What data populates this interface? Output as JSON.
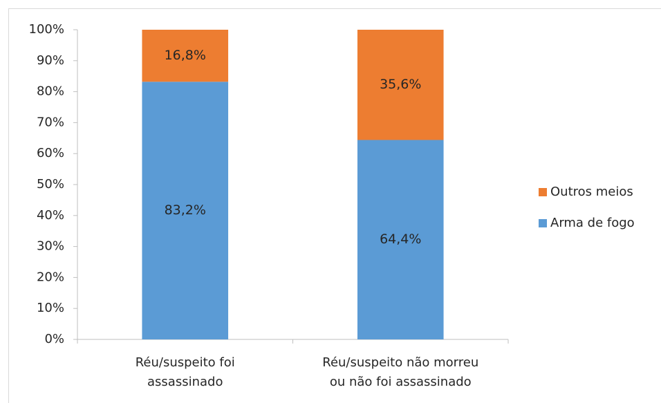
{
  "chart_data": {
    "type": "stacked_bar",
    "categories": [
      "Réu/suspeito foi\nassassinado",
      "Réu/suspeito não morreu\nou não foi assassinado"
    ],
    "series": [
      {
        "name": "Arma de fogo",
        "color": "#5b9bd5",
        "values": [
          83.2,
          64.4
        ],
        "value_labels": [
          "83,2%",
          "64,4%"
        ]
      },
      {
        "name": "Outros meios",
        "color": "#ed7d31",
        "values": [
          16.8,
          35.6
        ],
        "value_labels": [
          "16,8%",
          "35,6%"
        ]
      }
    ],
    "ylim": [
      0,
      100
    ],
    "yticks": [
      {
        "value": 0,
        "label": "0%"
      },
      {
        "value": 10,
        "label": "10%"
      },
      {
        "value": 20,
        "label": "20%"
      },
      {
        "value": 30,
        "label": "30%"
      },
      {
        "value": 40,
        "label": "40%"
      },
      {
        "value": 50,
        "label": "50%"
      },
      {
        "value": 60,
        "label": "60%"
      },
      {
        "value": 70,
        "label": "70%"
      },
      {
        "value": 80,
        "label": "80%"
      },
      {
        "value": 90,
        "label": "90%"
      },
      {
        "value": 100,
        "label": "100%"
      }
    ],
    "legend": "right"
  }
}
